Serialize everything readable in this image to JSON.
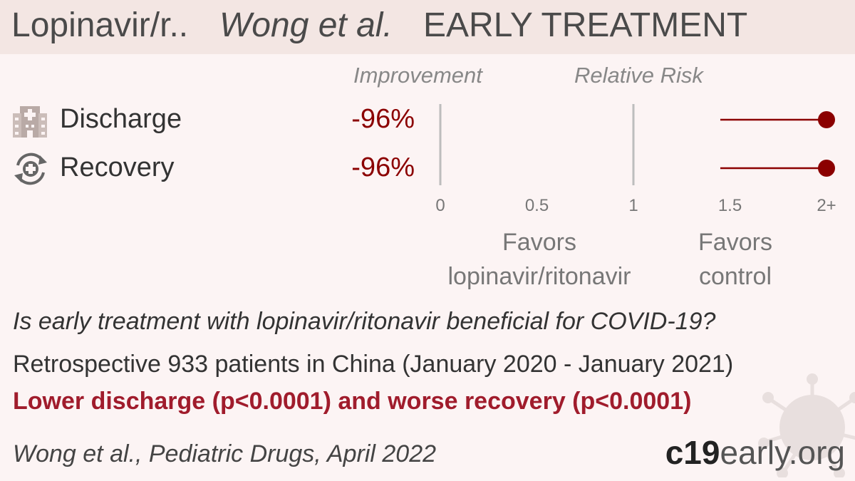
{
  "header": {
    "drug": "Lopinavir/r..",
    "author": "Wong et al.",
    "stage": "EARLY TREATMENT"
  },
  "columns": {
    "improvement": "Improvement",
    "relative_risk": "Relative Risk"
  },
  "rows": [
    {
      "label": "Discharge",
      "improvement": "-96%",
      "icon": "hospital-icon"
    },
    {
      "label": "Recovery",
      "improvement": "-96%",
      "icon": "recovery-icon"
    }
  ],
  "favors": {
    "left_line1": "Favors",
    "left_line2": "lopinavir/ritonavir",
    "right_line1": "Favors",
    "right_line2": "control"
  },
  "summary": {
    "question_prefix": "Is early treatment with ",
    "question_drug": "lopinavir/ritonavir",
    "question_suffix": " beneficial for COVID-19?",
    "design": "Retrospective 933 patients in China (January 2020 - January 2021)",
    "result": "Lower discharge (p<0.0001) and worse recovery (p<0.0001)"
  },
  "citation": "Wong et al., Pediatric Drugs, April 2022",
  "brand": {
    "part1": "c19",
    "part2": "early.org"
  },
  "colors": {
    "accent": "#8b0000",
    "result": "#a01c2c",
    "header_bg": "#f3e6e3",
    "background": "#fcf4f4"
  },
  "chart_data": {
    "type": "forest",
    "xlabel": "Relative Risk",
    "xlim": [
      0,
      2
    ],
    "tick_values": [
      0,
      0.5,
      1,
      1.5,
      2
    ],
    "tick_labels": [
      "0",
      "0.5",
      "1",
      "1.5",
      "2+"
    ],
    "reference_lines": [
      0,
      1
    ],
    "series": [
      {
        "name": "Discharge",
        "point": 2,
        "ci_low": 1.45,
        "ci_high": 2
      },
      {
        "name": "Recovery",
        "point": 2,
        "ci_low": 1.45,
        "ci_high": 2
      }
    ]
  }
}
